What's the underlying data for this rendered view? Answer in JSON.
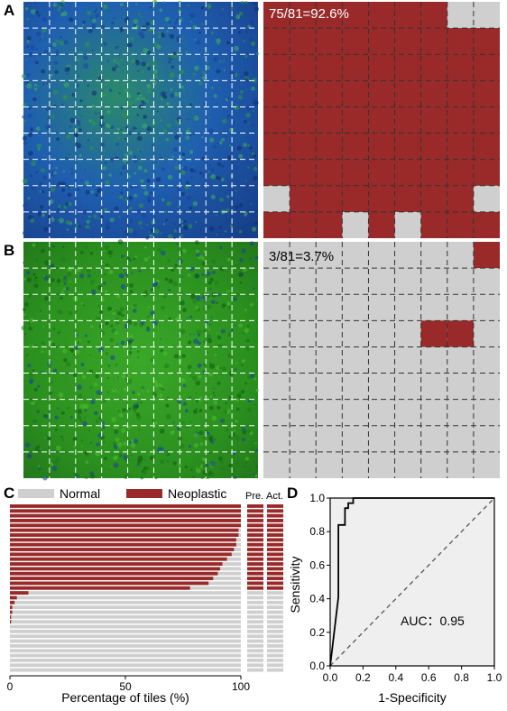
{
  "panels": {
    "a": {
      "label": "A",
      "annotation": "75/81=92.6%"
    },
    "b": {
      "label": "B",
      "annotation": "3/81=3.7%"
    },
    "c": {
      "label": "C"
    },
    "d": {
      "label": "D"
    }
  },
  "colors": {
    "neoplastic": "#9a2a2a",
    "normal": "#cfcfcf",
    "micro_blue": "#1a4fb5",
    "micro_green": "#2f9a1f"
  },
  "tile_maps": {
    "grid": 9,
    "a_normal_tiles": [
      [
        0,
        7
      ],
      [
        0,
        8
      ],
      [
        7,
        0
      ],
      [
        7,
        8
      ],
      [
        8,
        3
      ],
      [
        8,
        5
      ]
    ],
    "b_neoplastic_tiles": [
      [
        0,
        8
      ],
      [
        3,
        6
      ],
      [
        3,
        7
      ]
    ]
  },
  "chart_data": [
    {
      "type": "bar",
      "orientation": "horizontal-stacked",
      "xlabel": "Percentage of tiles (%)",
      "xticks": [
        "0",
        "50",
        "100"
      ],
      "xlim": [
        0,
        100
      ],
      "legend": [
        "Normal",
        "Neoplastic"
      ],
      "column_labels": [
        "Pre.",
        "Act."
      ],
      "series": [
        {
          "name": "Neoplastic",
          "values": [
            100,
            100,
            100,
            100,
            100,
            99,
            99,
            98,
            98,
            97,
            96,
            94,
            92,
            91,
            90,
            88,
            86,
            78,
            8,
            3,
            2,
            1,
            1,
            0.5,
            0.5,
            0,
            0,
            0,
            0,
            0,
            0,
            0,
            0,
            0,
            0
          ]
        }
      ],
      "predicted": [
        "N",
        "N",
        "N",
        "N",
        "N",
        "N",
        "N",
        "N",
        "N",
        "N",
        "N",
        "N",
        "N",
        "N",
        "N",
        "N",
        "N",
        "N",
        "H",
        "H",
        "H",
        "H",
        "H",
        "H",
        "H",
        "H",
        "H",
        "H",
        "H",
        "H",
        "H",
        "H",
        "H",
        "H",
        "H"
      ],
      "actual": [
        "N",
        "N",
        "N",
        "N",
        "N",
        "N",
        "N",
        "N",
        "N",
        "N",
        "N",
        "N",
        "N",
        "N",
        "N",
        "N",
        "N",
        "N",
        "H",
        "H",
        "H",
        "H",
        "H",
        "H",
        "H",
        "H",
        "H",
        "H",
        "H",
        "H",
        "H",
        "H",
        "H",
        "H",
        "H"
      ]
    },
    {
      "type": "line",
      "xlabel": "1-Specificity",
      "ylabel": "Sensitivity",
      "xticks": [
        "0.0",
        "0.2",
        "0.4",
        "0.6",
        "0.8",
        "1.0"
      ],
      "yticks": [
        "0.0",
        "0.2",
        "0.4",
        "0.6",
        "0.8",
        "1.0"
      ],
      "xlim": [
        0,
        1
      ],
      "ylim": [
        0,
        1
      ],
      "annotation": "AUC：0.95",
      "roc": {
        "x": [
          0,
          0.05,
          0.05,
          0.09,
          0.09,
          0.11,
          0.11,
          0.14,
          0.14,
          1.0
        ],
        "y": [
          0,
          0.41,
          0.84,
          0.84,
          0.94,
          0.94,
          0.97,
          0.97,
          1.0,
          1.0
        ]
      },
      "reference": {
        "x": [
          0,
          1
        ],
        "y": [
          0,
          1
        ]
      }
    }
  ]
}
